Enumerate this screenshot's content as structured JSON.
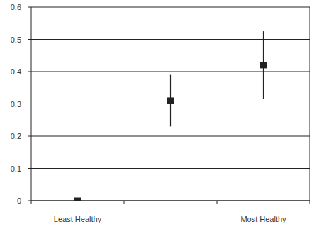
{
  "chart_data": {
    "type": "scatter",
    "categories": [
      "Least Healthy",
      null,
      "Most Healthy"
    ],
    "values": [
      0,
      0.31,
      0.42
    ],
    "errors": [
      0,
      0.08,
      0.105
    ],
    "ylim": [
      0,
      0.6
    ],
    "yticks": [
      0,
      0.1,
      0.2,
      0.3,
      0.4,
      0.5,
      0.6
    ],
    "grid": true,
    "color": "#222222",
    "marker": "square"
  }
}
